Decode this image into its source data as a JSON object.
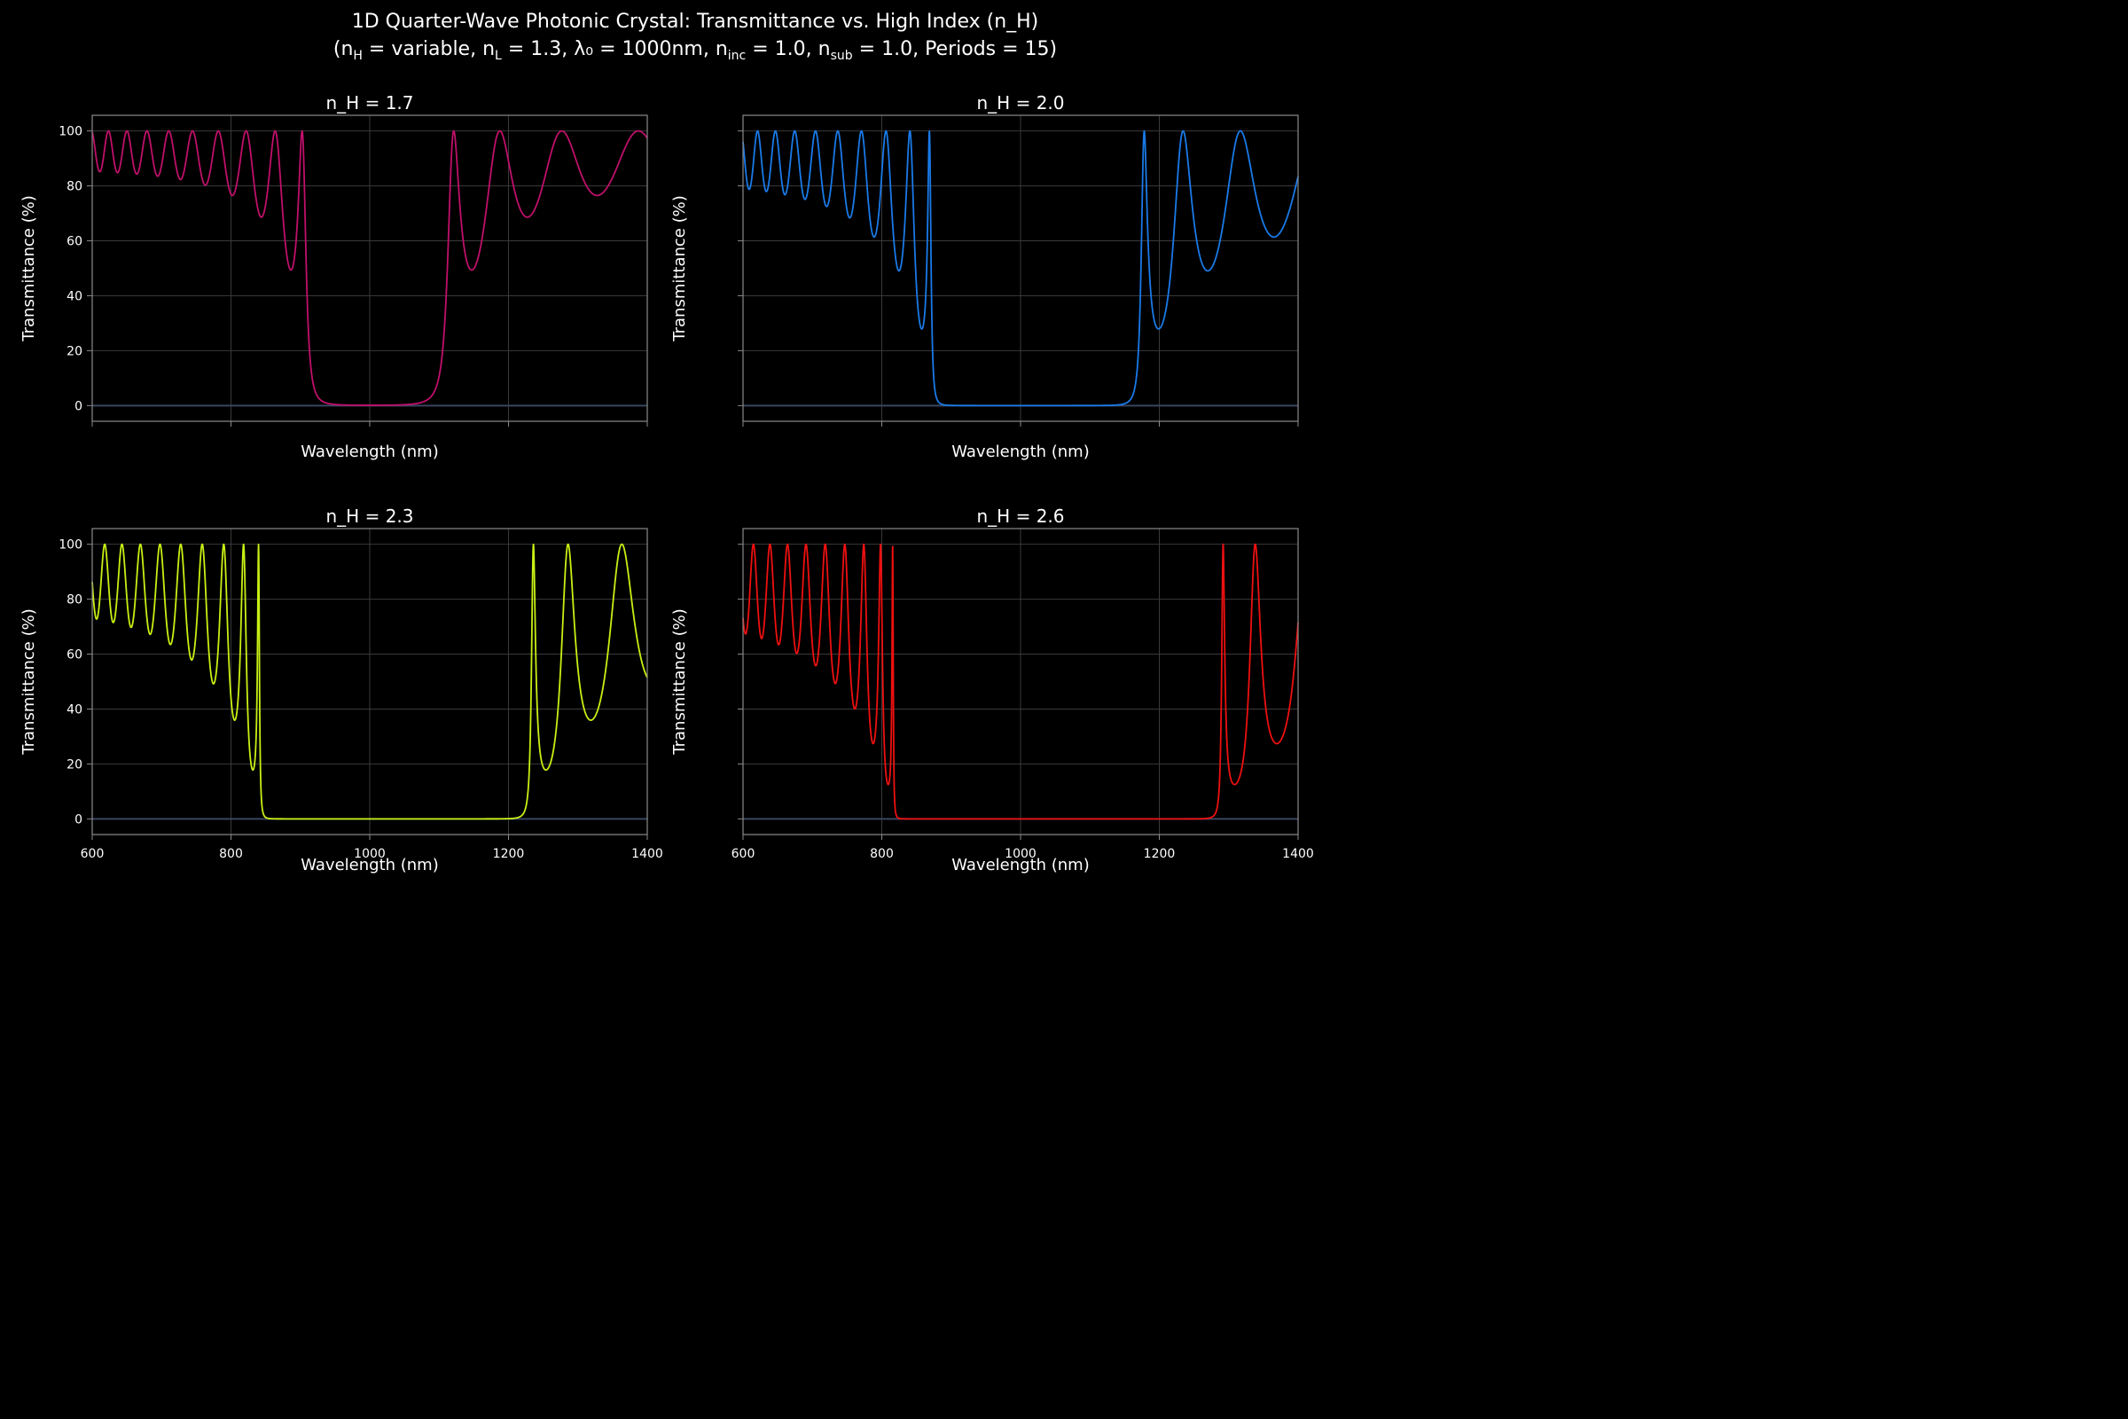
{
  "figure": {
    "title_line1": "1D Quarter-Wave Photonic Crystal: Transmittance vs. High Index (n_H)",
    "title_line2": {
      "p1": "(n",
      "s1": "H",
      "p2": " = variable, n",
      "s2": "L",
      "p3": " = 1.3, λ₀ = 1000nm, n",
      "s3": "inc",
      "p4": " = 1.0, n",
      "s4": "sub",
      "p5": " = 1.0, Periods = 15)"
    }
  },
  "chart_data": [
    {
      "type": "line",
      "title": "n_H = 1.7",
      "color": "#c0106a",
      "xlabel": "Wavelength (nm)",
      "ylabel": "Transmittance (%)",
      "xlim": [
        600,
        1400
      ],
      "ylim": [
        -5.7,
        105.7
      ],
      "x_ticks": [
        "600",
        "800",
        "1000",
        "1200",
        "1400"
      ],
      "show_x_tick_labels": false,
      "y_ticks": [
        "0",
        "20",
        "40",
        "60",
        "80",
        "100"
      ],
      "show_y_tick_labels": true,
      "physics": {
        "nH": 1.7,
        "nL": 1.3,
        "lambda0": 1000,
        "n_inc": 1.0,
        "n_sub": 1.0,
        "periods": 15
      }
    },
    {
      "type": "line",
      "title": "n_H = 2.0",
      "color": "#1a7ae8",
      "xlabel": "Wavelength (nm)",
      "ylabel": "Transmittance (%)",
      "xlim": [
        600,
        1400
      ],
      "ylim": [
        -5.7,
        105.7
      ],
      "x_ticks": [
        "600",
        "800",
        "1000",
        "1200",
        "1400"
      ],
      "show_x_tick_labels": false,
      "y_ticks": [
        "0",
        "20",
        "40",
        "60",
        "80",
        "100"
      ],
      "show_y_tick_labels": false,
      "physics": {
        "nH": 2.0,
        "nL": 1.3,
        "lambda0": 1000,
        "n_inc": 1.0,
        "n_sub": 1.0,
        "periods": 15
      }
    },
    {
      "type": "line",
      "title": "n_H = 2.3",
      "color": "#c8f014",
      "xlabel": "Wavelength (nm)",
      "ylabel": "Transmittance (%)",
      "xlim": [
        600,
        1400
      ],
      "ylim": [
        -5.7,
        105.7
      ],
      "x_ticks": [
        "600",
        "800",
        "1000",
        "1200",
        "1400"
      ],
      "show_x_tick_labels": true,
      "y_ticks": [
        "0",
        "20",
        "40",
        "60",
        "80",
        "100"
      ],
      "show_y_tick_labels": true,
      "physics": {
        "nH": 2.3,
        "nL": 1.3,
        "lambda0": 1000,
        "n_inc": 1.0,
        "n_sub": 1.0,
        "periods": 15
      }
    },
    {
      "type": "line",
      "title": "n_H = 2.6",
      "color": "#ee1010",
      "xlabel": "Wavelength (nm)",
      "ylabel": "Transmittance (%)",
      "xlim": [
        600,
        1400
      ],
      "ylim": [
        -5.7,
        105.7
      ],
      "x_ticks": [
        "600",
        "800",
        "1000",
        "1200",
        "1400"
      ],
      "show_x_tick_labels": true,
      "y_ticks": [
        "0",
        "20",
        "40",
        "60",
        "80",
        "100"
      ],
      "show_y_tick_labels": false,
      "physics": {
        "nH": 2.6,
        "nL": 1.3,
        "lambda0": 1000,
        "n_inc": 1.0,
        "n_sub": 1.0,
        "periods": 15
      }
    }
  ]
}
